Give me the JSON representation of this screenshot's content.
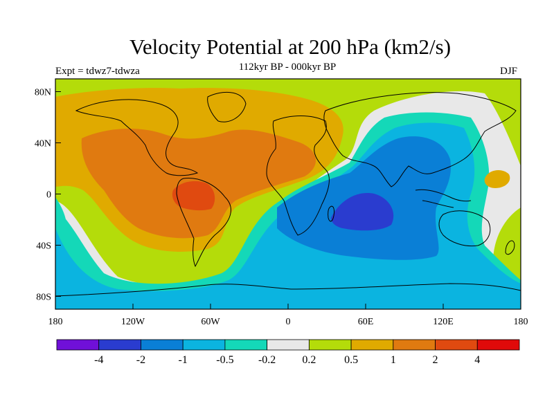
{
  "header": {
    "title": "Velocity Potential at 200 hPa (km2/s)",
    "subtitle": "112kyr BP - 000kyr BP",
    "experiment": "Expt = tdwz7-tdwza",
    "season": "DJF"
  },
  "chart_data": {
    "type": "heatmap",
    "projection": "cylindrical equidistant",
    "xlim": [
      -180,
      180
    ],
    "ylim": [
      -90,
      90
    ],
    "x_tick_labels": [
      "180",
      "120W",
      "60W",
      "0",
      "60E",
      "120E",
      "180"
    ],
    "x_tick_values": [
      -180,
      -120,
      -60,
      0,
      60,
      120,
      180
    ],
    "y_tick_labels": [
      "80N",
      "40N",
      "0",
      "40S",
      "80S"
    ],
    "y_tick_values": [
      80,
      40,
      0,
      -40,
      -80
    ],
    "colorbar": {
      "labels": [
        "-4",
        "-2",
        "-1",
        "-0.5",
        "-0.2",
        "0.2",
        "0.5",
        "1",
        "2",
        "4"
      ],
      "colors": [
        "#7010d8",
        "#2a3ccf",
        "#0a7fd6",
        "#0bb4e0",
        "#14d8b8",
        "#e8e8e8",
        "#b4dc0a",
        "#e0aa00",
        "#e07a10",
        "#e04a10",
        "#e00a0a"
      ]
    },
    "regions": [
      {
        "level": 0.5,
        "description_free": true
      },
      {
        "level": -2
      }
    ],
    "background_level_color": "#b4dc0a"
  }
}
